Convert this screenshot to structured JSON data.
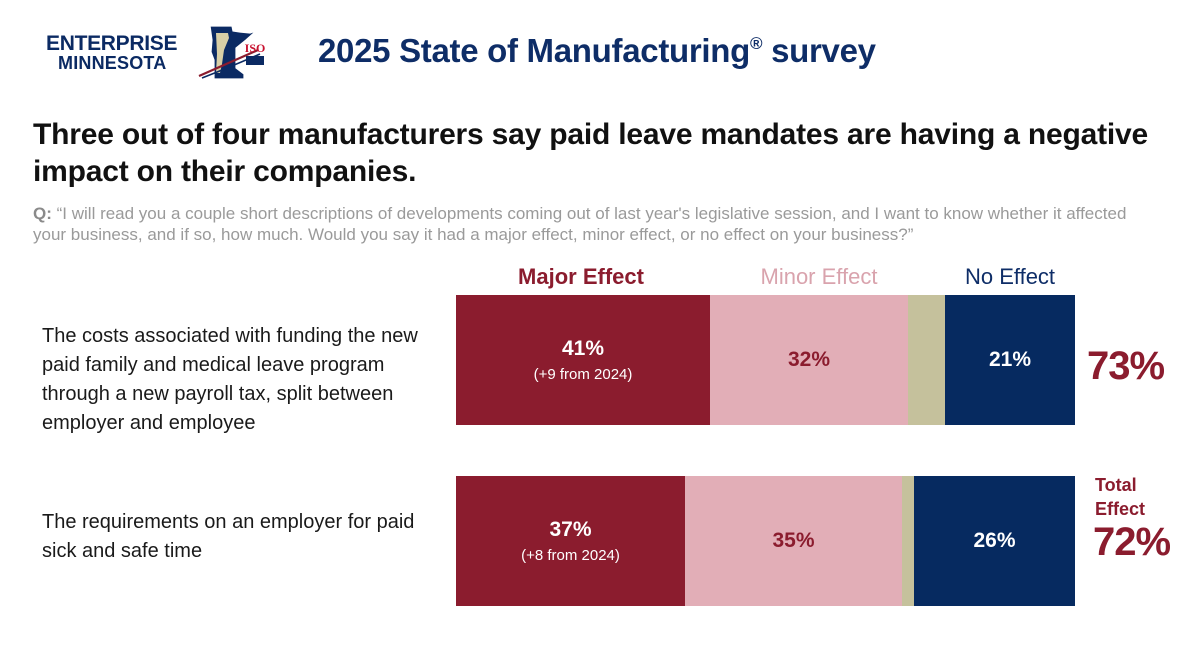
{
  "header": {
    "logo_line1": "ENTERPRISE",
    "logo_line2": "MINNESOTA",
    "logo_badge": "ISO",
    "title": "2025 State of Manufacturing",
    "title_mark": "®",
    "title_suffix": " survey"
  },
  "headline": "Three out of four manufacturers say paid leave mandates are having a negative impact on their companies.",
  "question": {
    "label": "Q:",
    "text": "“I will read you a couple short descriptions of developments coming out of last year's legislative session, and I want to know whether it affected your business, and if so, how much. Would you say it had a major effect, minor effect, or no effect on your business?”"
  },
  "colors": {
    "major": "#8b1c2e",
    "minor": "#e2aeb7",
    "dont_know": "#c5c19c",
    "none": "#062a60"
  },
  "chart_data": {
    "type": "bar",
    "orientation": "horizontal",
    "stacked": true,
    "legend": [
      "Major Effect",
      "Minor Effect",
      "No Effect"
    ],
    "total_label": "Total Effect",
    "rows": [
      {
        "label": "The costs associated with funding the new paid family and medical leave program through a new payroll tax, split between employer and employee",
        "major": 41,
        "major_text": "41%",
        "major_change": "(+9 from 2024)",
        "minor": 32,
        "minor_text": "32%",
        "dont_know": 6,
        "none": 21,
        "none_text": "21%",
        "total": "73%"
      },
      {
        "label": "The requirements on an employer for paid sick and safe time",
        "major": 37,
        "major_text": "37%",
        "major_change": "(+8 from 2024)",
        "minor": 35,
        "minor_text": "35%",
        "dont_know": 2,
        "none": 26,
        "none_text": "26%",
        "total": "72%"
      }
    ]
  }
}
